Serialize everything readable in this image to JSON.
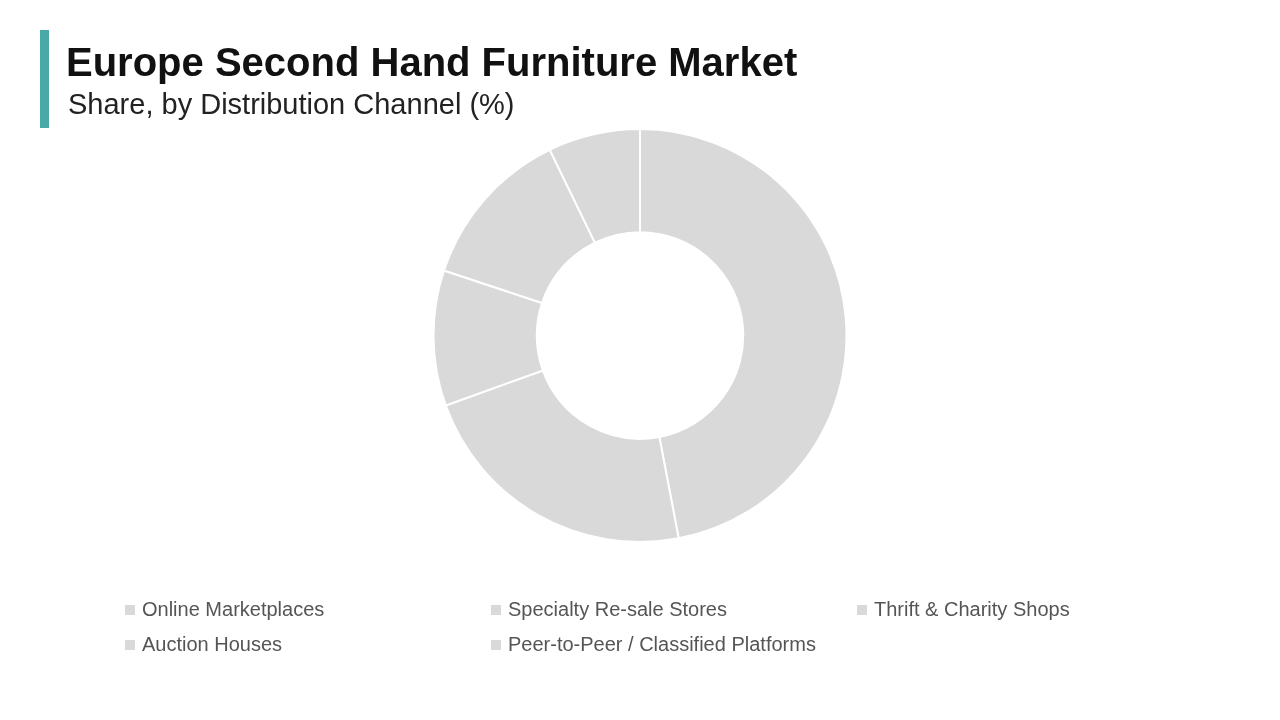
{
  "chart_data": {
    "type": "donut",
    "title": "Europe Second Hand Furniture Market",
    "subtitle": "Share, by Distribution Channel (%)",
    "categories": [
      "Online Marketplaces",
      "Specialty Re-sale Stores",
      "Thrift & Charity Shops",
      "Auction Houses",
      "Peer-to-Peer / Classified Platforms"
    ],
    "values": [
      47,
      22.5,
      10.6,
      12.7,
      7.2
    ],
    "colors": [
      "#d9d9d9",
      "#d9d9d9",
      "#d9d9d9",
      "#d9d9d9",
      "#d9d9d9"
    ],
    "legend": "bottom"
  }
}
